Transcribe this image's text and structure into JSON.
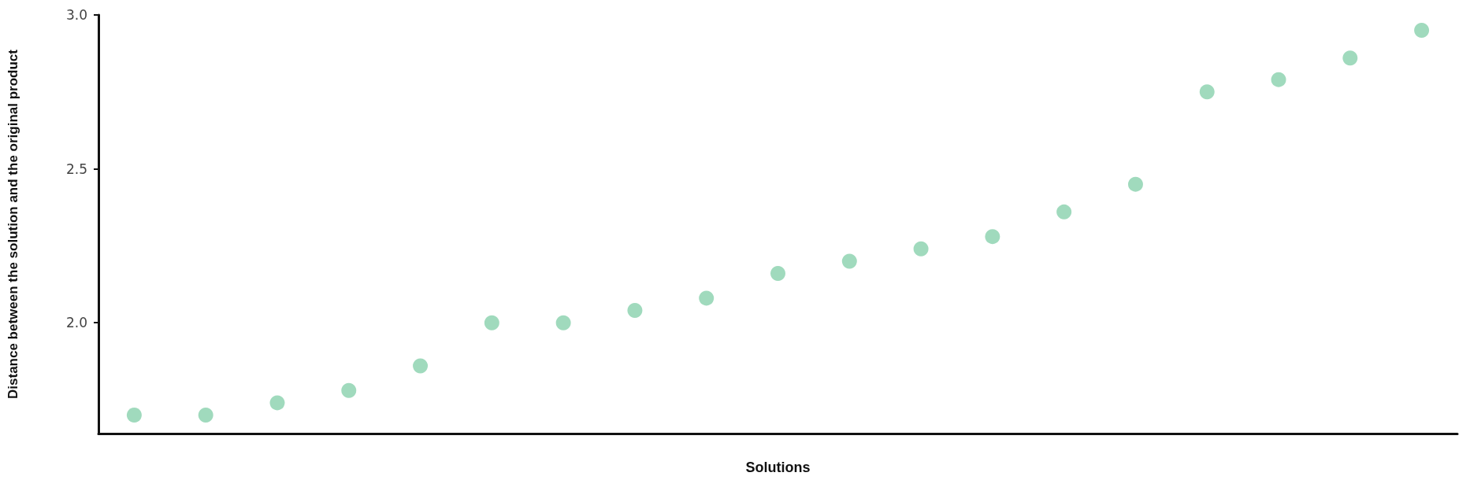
{
  "chart_data": {
    "type": "scatter",
    "xlabel": "Solutions",
    "ylabel": "Distance between the solution and the original product",
    "categories": [
      null,
      null,
      null,
      null,
      null,
      null,
      null,
      null,
      null,
      null,
      null,
      null,
      null,
      null,
      null,
      null,
      null,
      null,
      null
    ],
    "series": [
      {
        "color": "#88d1ad",
        "values": [
          1.7,
          1.7,
          1.74,
          1.78,
          1.86,
          2.0,
          2.0,
          2.04,
          2.08,
          2.16,
          2.2,
          2.24,
          2.28,
          2.36,
          2.45,
          2.75,
          2.79,
          2.86,
          2.95
        ]
      }
    ],
    "ylim": [
      1.64,
      3.0
    ],
    "yticks": [
      {
        "value": 2,
        "label": "2.0"
      },
      {
        "value": 2.5,
        "label": "2.5"
      },
      {
        "value": 3,
        "label": "3.0"
      }
    ],
    "grid": false,
    "marker": "circle"
  }
}
